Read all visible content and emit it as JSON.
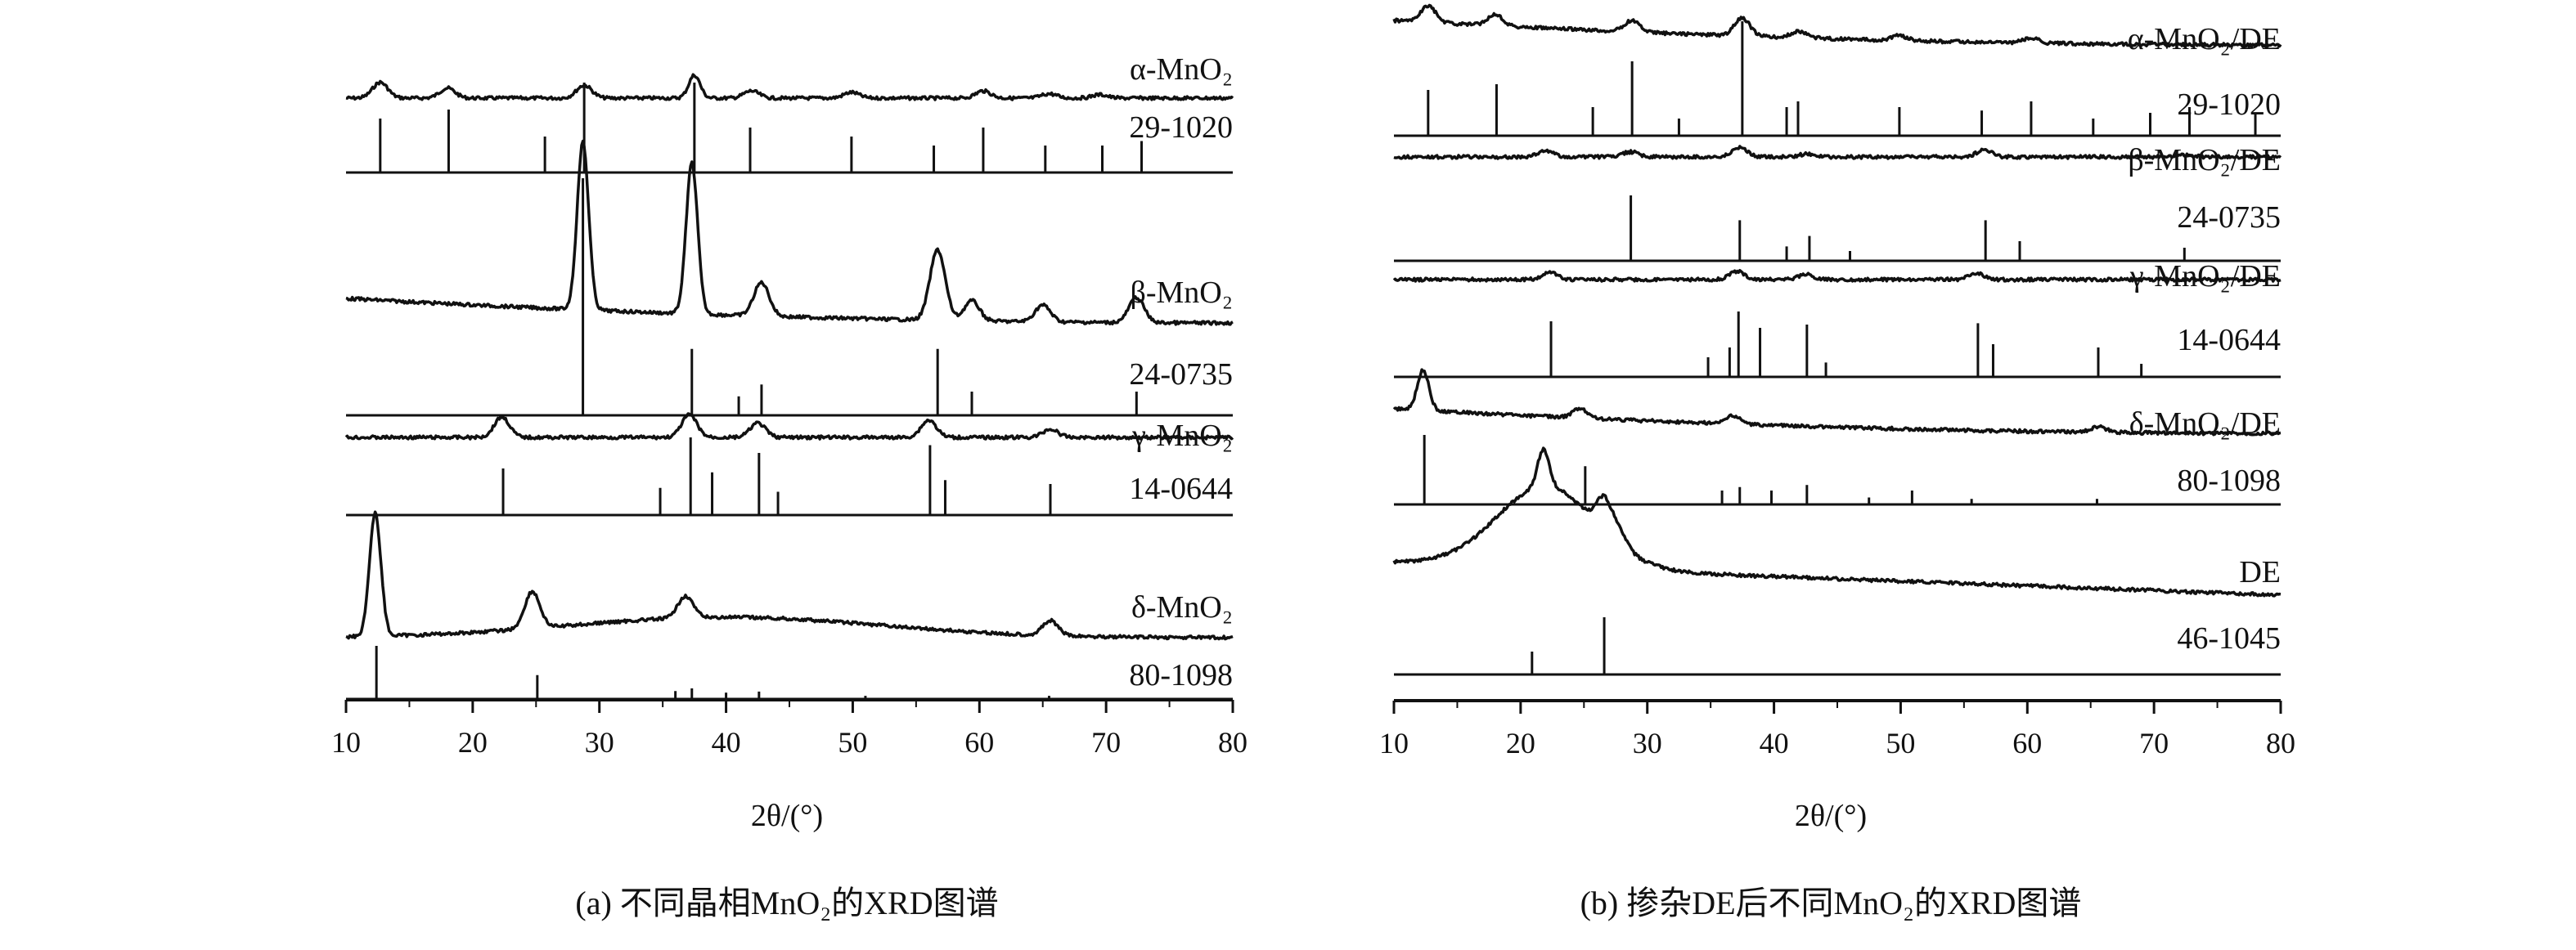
{
  "chart_data": [
    {
      "type": "line",
      "caption": "(a) 不同晶相MnO₂的XRD图谱",
      "xlabel": "2θ/(°)",
      "ylabel": "",
      "xlim": [
        10,
        80
      ],
      "xticks": [
        10,
        20,
        30,
        40,
        50,
        60,
        70,
        80
      ],
      "series": [
        {
          "name": "α-MnO₂",
          "reference": "29-1020",
          "peaks": [
            [
              12.7,
              0.55
            ],
            [
              18.0,
              0.35
            ],
            [
              28.8,
              0.45
            ],
            [
              37.5,
              0.8
            ],
            [
              42.0,
              0.25
            ],
            [
              49.9,
              0.2
            ],
            [
              60.3,
              0.25
            ],
            [
              65.5,
              0.15
            ],
            [
              69.5,
              0.12
            ]
          ],
          "ref_lines": [
            [
              12.7,
              0.6
            ],
            [
              18.1,
              0.7
            ],
            [
              25.7,
              0.4
            ],
            [
              28.8,
              1.0
            ],
            [
              37.5,
              1.0
            ],
            [
              41.9,
              0.5
            ],
            [
              49.9,
              0.4
            ],
            [
              56.4,
              0.3
            ],
            [
              60.3,
              0.5
            ],
            [
              65.2,
              0.3
            ],
            [
              69.7,
              0.3
            ],
            [
              72.8,
              0.35
            ]
          ]
        },
        {
          "name": "β-MnO₂",
          "reference": "24-0735",
          "peaks": [
            [
              28.7,
              1.0
            ],
            [
              37.3,
              0.9
            ],
            [
              42.8,
              0.2
            ],
            [
              56.7,
              0.42
            ],
            [
              59.4,
              0.12
            ],
            [
              65.0,
              0.1
            ],
            [
              72.4,
              0.15
            ]
          ],
          "ref_lines": [
            [
              28.7,
              1.0
            ],
            [
              37.3,
              0.28
            ],
            [
              41.0,
              0.08
            ],
            [
              42.8,
              0.13
            ],
            [
              56.7,
              0.28
            ],
            [
              59.4,
              0.1
            ],
            [
              72.4,
              0.1
            ]
          ]
        },
        {
          "name": "γ-MnO₂",
          "reference": "14-0644",
          "peaks": [
            [
              22.3,
              0.5
            ],
            [
              37.1,
              0.55
            ],
            [
              42.5,
              0.35
            ],
            [
              56.0,
              0.42
            ],
            [
              65.6,
              0.2
            ]
          ],
          "ref_lines": [
            [
              22.4,
              0.6
            ],
            [
              34.8,
              0.35
            ],
            [
              37.2,
              1.0
            ],
            [
              38.9,
              0.55
            ],
            [
              42.6,
              0.8
            ],
            [
              44.1,
              0.3
            ],
            [
              56.1,
              0.9
            ],
            [
              57.3,
              0.45
            ],
            [
              65.6,
              0.4
            ]
          ]
        },
        {
          "name": "δ-MnO₂",
          "reference": "80-1098",
          "peaks": [
            [
              12.3,
              1.0
            ],
            [
              24.7,
              0.3
            ],
            [
              36.8,
              0.18
            ],
            [
              65.6,
              0.12
            ]
          ],
          "ref_lines": [
            [
              12.4,
              1.0
            ],
            [
              25.1,
              0.45
            ],
            [
              36.0,
              0.15
            ],
            [
              37.3,
              0.2
            ],
            [
              40.0,
              0.12
            ],
            [
              42.6,
              0.14
            ],
            [
              51.0,
              0.06
            ],
            [
              65.5,
              0.06
            ]
          ]
        }
      ]
    },
    {
      "type": "line",
      "caption": "(b) 掺杂DE后不同MnO₂的XRD图谱",
      "xlabel": "2θ/(°)",
      "ylabel": "",
      "xlim": [
        10,
        80
      ],
      "xticks": [
        10,
        20,
        30,
        40,
        50,
        60,
        70,
        80
      ],
      "series": [
        {
          "name": "α-MnO₂/DE",
          "reference": "29-1020",
          "peaks": [
            [
              12.7,
              0.5
            ],
            [
              18.0,
              0.35
            ],
            [
              28.8,
              0.35
            ],
            [
              37.5,
              0.55
            ],
            [
              42.0,
              0.2
            ],
            [
              49.9,
              0.15
            ],
            [
              60.3,
              0.15
            ]
          ],
          "ref_lines": [
            [
              12.7,
              0.4
            ],
            [
              18.1,
              0.45
            ],
            [
              25.7,
              0.25
            ],
            [
              28.8,
              0.65
            ],
            [
              32.5,
              0.15
            ],
            [
              37.5,
              1.0
            ],
            [
              41.0,
              0.25
            ],
            [
              41.9,
              0.3
            ],
            [
              49.9,
              0.25
            ],
            [
              56.4,
              0.22
            ],
            [
              60.3,
              0.3
            ],
            [
              65.2,
              0.15
            ],
            [
              69.7,
              0.2
            ],
            [
              72.8,
              0.25
            ],
            [
              78.0,
              0.2
            ]
          ]
        },
        {
          "name": "β-MnO₂/DE",
          "reference": "24-0735",
          "peaks": [
            [
              22.0,
              0.3
            ],
            [
              28.7,
              0.25
            ],
            [
              37.3,
              0.45
            ],
            [
              42.6,
              0.15
            ],
            [
              56.6,
              0.35
            ],
            [
              72.4,
              0.1
            ]
          ],
          "ref_lines": [
            [
              28.7,
              1.0
            ],
            [
              37.3,
              0.62
            ],
            [
              41.0,
              0.22
            ],
            [
              42.8,
              0.38
            ],
            [
              46.0,
              0.15
            ],
            [
              56.7,
              0.62
            ],
            [
              59.4,
              0.3
            ],
            [
              72.4,
              0.2
            ]
          ]
        },
        {
          "name": "γ-MnO₂/DE",
          "reference": "14-0644",
          "peaks": [
            [
              22.3,
              0.35
            ],
            [
              37.1,
              0.4
            ],
            [
              42.5,
              0.25
            ],
            [
              56.0,
              0.3
            ]
          ],
          "ref_lines": [
            [
              22.4,
              0.85
            ],
            [
              34.8,
              0.3
            ],
            [
              36.5,
              0.45
            ],
            [
              37.2,
              1.0
            ],
            [
              38.9,
              0.75
            ],
            [
              42.6,
              0.8
            ],
            [
              44.1,
              0.22
            ],
            [
              56.1,
              0.82
            ],
            [
              57.3,
              0.5
            ],
            [
              65.6,
              0.45
            ],
            [
              69.0,
              0.2
            ]
          ]
        },
        {
          "name": "δ-MnO₂/DE",
          "reference": "80-1098",
          "peaks": [
            [
              12.3,
              0.9
            ],
            [
              24.7,
              0.2
            ],
            [
              36.8,
              0.18
            ],
            [
              65.6,
              0.12
            ]
          ],
          "ref_lines": [
            [
              12.4,
              1.0
            ],
            [
              25.1,
              0.55
            ],
            [
              35.9,
              0.2
            ],
            [
              37.3,
              0.25
            ],
            [
              39.8,
              0.2
            ],
            [
              42.6,
              0.28
            ],
            [
              47.5,
              0.1
            ],
            [
              50.9,
              0.2
            ],
            [
              55.6,
              0.08
            ],
            [
              65.5,
              0.08
            ]
          ]
        },
        {
          "name": "DE",
          "reference": "46-1045",
          "peaks": [
            [
              21.8,
              0.7
            ],
            [
              26.6,
              0.6
            ],
            [
              27.8,
              0.25
            ]
          ],
          "ref_lines": [
            [
              20.9,
              0.4
            ],
            [
              26.6,
              1.0
            ]
          ]
        }
      ]
    }
  ]
}
